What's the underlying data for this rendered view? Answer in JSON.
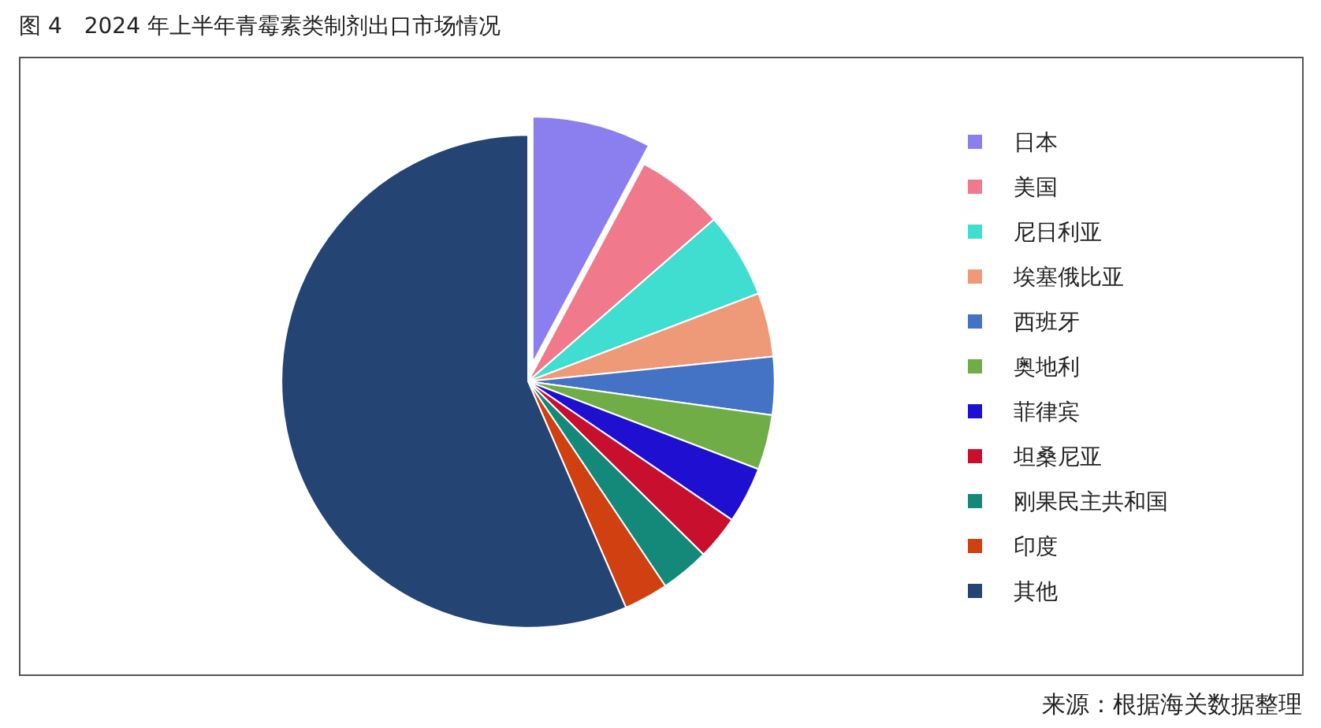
{
  "chart_data": {
    "type": "pie",
    "title": "图 4　2024 年上半年青霉素类制剂出口市场情况",
    "categories": [
      "日本",
      "美国",
      "尼日利亚",
      "埃塞俄比亚",
      "西班牙",
      "奥地利",
      "菲律宾",
      "坦桑尼亚",
      "刚果民主共和国",
      "印度",
      "其他"
    ],
    "values": [
      7.8,
      5.8,
      5.6,
      4.2,
      3.8,
      3.6,
      3.7,
      2.9,
      3.2,
      2.9,
      56.5
    ],
    "colors": [
      "#8b7ff0",
      "#f07a8c",
      "#3fded0",
      "#ee9a78",
      "#4472c4",
      "#70ad47",
      "#1f0fd0",
      "#c8102e",
      "#14897a",
      "#d04010",
      "#244573"
    ],
    "legend": "right",
    "annotations": [
      "来源：根据海关数据整理"
    ]
  }
}
